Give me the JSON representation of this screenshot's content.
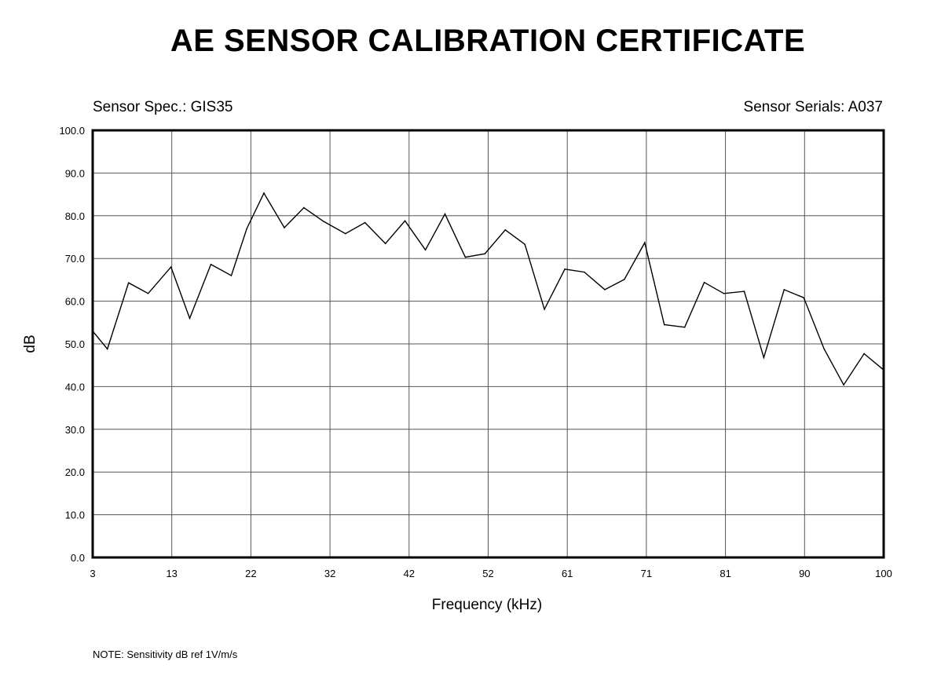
{
  "header": {
    "title": "AE SENSOR CALIBRATION CERTIFICATE",
    "sensor_spec": "Sensor Spec.: GIS35",
    "sensor_serials": "Sensor Serials: A037"
  },
  "footer": {
    "note": "NOTE:  Sensitivity dB ref 1V/m/s"
  },
  "chart_data": {
    "type": "line",
    "title": "",
    "xlabel": "Frequency (kHz)",
    "ylabel": "dB",
    "xlim": [
      3,
      100
    ],
    "ylim": [
      0,
      100
    ],
    "x_ticks": [
      "3",
      "13",
      "22",
      "32",
      "42",
      "52",
      "61",
      "71",
      "81",
      "90",
      "100"
    ],
    "y_ticks": [
      "0.0",
      "10.0",
      "20.0",
      "30.0",
      "40.0",
      "50.0",
      "60.0",
      "70.0",
      "80.0",
      "90.0",
      "100.0"
    ],
    "grid": true,
    "x": [
      3.0,
      4.8,
      7.4,
      9.8,
      12.6,
      14.9,
      17.5,
      20.0,
      21.9,
      24.0,
      26.5,
      28.9,
      31.3,
      34.0,
      36.4,
      38.9,
      41.3,
      43.8,
      46.2,
      48.7,
      51.1,
      53.6,
      56.0,
      58.4,
      60.9,
      63.3,
      65.8,
      68.2,
      70.7,
      73.1,
      75.6,
      78.0,
      80.4,
      82.9,
      85.3,
      87.8,
      90.2,
      92.7,
      95.1,
      97.6,
      100.0
    ],
    "values": [
      53.0,
      48.8,
      64.3,
      61.8,
      68.0,
      56.0,
      68.6,
      66.0,
      77.0,
      85.3,
      77.2,
      81.9,
      78.7,
      75.8,
      78.4,
      73.5,
      78.8,
      72.0,
      80.4,
      70.3,
      71.1,
      76.7,
      73.3,
      58.1,
      67.5,
      66.8,
      62.7,
      65.1,
      73.7,
      54.5,
      53.9,
      64.4,
      61.8,
      62.3,
      46.8,
      62.7,
      60.8,
      48.8,
      40.4,
      47.7,
      43.9
    ]
  }
}
